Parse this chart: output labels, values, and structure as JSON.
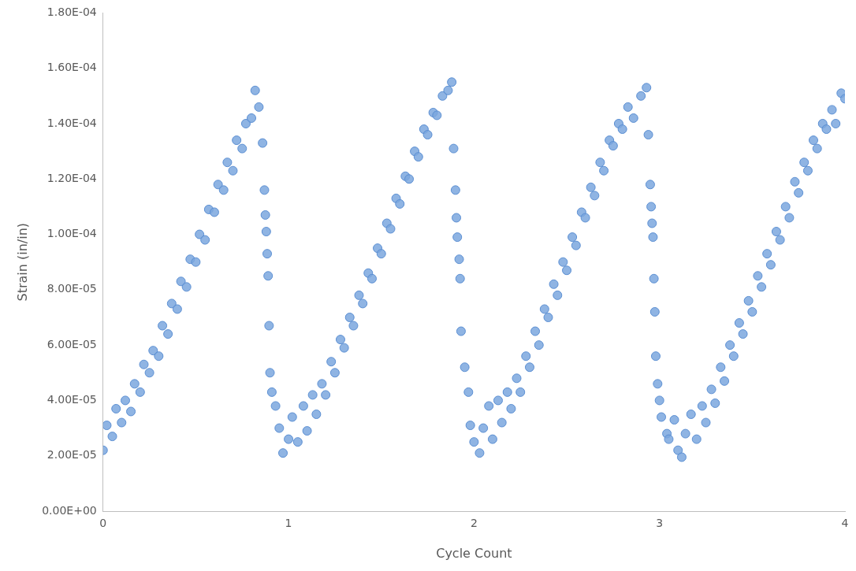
{
  "chart_data": {
    "type": "scatter",
    "xlabel": "Cycle Count",
    "ylabel": "Strain (in/in)",
    "marker": "circle",
    "grid": false,
    "legend": false,
    "xlim": [
      0,
      4
    ],
    "xticks": [
      0,
      1,
      2,
      3,
      4
    ],
    "ylim": [
      0,
      0.00018
    ],
    "yticks": [
      {
        "value": 0,
        "label": "0.00E+00"
      },
      {
        "value": 2e-05,
        "label": "2.00E-05"
      },
      {
        "value": 4e-05,
        "label": "4.00E-05"
      },
      {
        "value": 6e-05,
        "label": "6.00E-05"
      },
      {
        "value": 8e-05,
        "label": "8.00E-05"
      },
      {
        "value": 0.0001,
        "label": "1.00E-04"
      },
      {
        "value": 0.00012,
        "label": "1.20E-04"
      },
      {
        "value": 0.00014,
        "label": "1.40E-04"
      },
      {
        "value": 0.00016,
        "label": "1.60E-04"
      },
      {
        "value": 0.00018,
        "label": "1.80E-04"
      }
    ],
    "series": [
      {
        "color": "#7ba7de",
        "x": [
          0,
          0.02,
          0.05,
          0.07,
          0.1,
          0.12,
          0.15,
          0.17,
          0.2,
          0.22,
          0.25,
          0.27,
          0.3,
          0.32,
          0.35,
          0.37,
          0.4,
          0.42,
          0.45,
          0.47,
          0.5,
          0.52,
          0.55,
          0.57,
          0.6,
          0.62,
          0.65,
          0.67,
          0.7,
          0.72,
          0.75,
          0.77,
          0.8,
          0.82,
          0.84,
          0.86,
          0.87,
          0.875,
          0.88,
          0.885,
          0.89,
          0.895,
          0.9,
          0.91,
          0.93,
          0.95,
          0.97,
          1,
          1.02,
          1.05,
          1.08,
          1.1,
          1.13,
          1.15,
          1.18,
          1.2,
          1.23,
          1.25,
          1.28,
          1.3,
          1.33,
          1.35,
          1.38,
          1.4,
          1.43,
          1.45,
          1.48,
          1.5,
          1.53,
          1.55,
          1.58,
          1.6,
          1.63,
          1.65,
          1.68,
          1.7,
          1.73,
          1.75,
          1.78,
          1.8,
          1.83,
          1.86,
          1.88,
          1.89,
          1.9,
          1.905,
          1.91,
          1.92,
          1.925,
          1.93,
          1.95,
          1.97,
          1.98,
          2,
          2.03,
          2.05,
          2.08,
          2.1,
          2.13,
          2.15,
          2.18,
          2.2,
          2.23,
          2.25,
          2.28,
          2.3,
          2.33,
          2.35,
          2.38,
          2.4,
          2.43,
          2.45,
          2.48,
          2.5,
          2.53,
          2.55,
          2.58,
          2.6,
          2.63,
          2.65,
          2.68,
          2.7,
          2.73,
          2.75,
          2.78,
          2.8,
          2.83,
          2.86,
          2.9,
          2.93,
          2.94,
          2.95,
          2.955,
          2.96,
          2.965,
          2.97,
          2.975,
          2.98,
          2.99,
          3,
          3.01,
          3.04,
          3.05,
          3.08,
          3.1,
          3.12,
          3.14,
          3.17,
          3.2,
          3.23,
          3.25,
          3.28,
          3.3,
          3.33,
          3.35,
          3.38,
          3.4,
          3.43,
          3.45,
          3.48,
          3.5,
          3.53,
          3.55,
          3.58,
          3.6,
          3.63,
          3.65,
          3.68,
          3.7,
          3.73,
          3.75,
          3.78,
          3.8,
          3.83,
          3.85,
          3.88,
          3.9,
          3.93,
          3.95,
          3.98,
          4
        ],
        "values": [
          2.2e-05,
          3.1e-05,
          2.7e-05,
          3.7e-05,
          3.2e-05,
          4e-05,
          3.6e-05,
          4.6e-05,
          4.3e-05,
          5.3e-05,
          5e-05,
          5.8e-05,
          5.6e-05,
          6.7e-05,
          6.4e-05,
          7.5e-05,
          7.3e-05,
          8.3e-05,
          8.1e-05,
          9.1e-05,
          9e-05,
          0.0001,
          9.8e-05,
          0.000109,
          0.000108,
          0.000118,
          0.000116,
          0.000126,
          0.000123,
          0.000134,
          0.000131,
          0.00014,
          0.000142,
          0.000152,
          0.000146,
          0.000133,
          0.000116,
          0.000107,
          0.000101,
          9.3e-05,
          8.5e-05,
          6.7e-05,
          5e-05,
          4.3e-05,
          3.8e-05,
          3e-05,
          2.1e-05,
          2.6e-05,
          3.4e-05,
          2.5e-05,
          3.8e-05,
          2.9e-05,
          4.2e-05,
          3.5e-05,
          4.6e-05,
          4.2e-05,
          5.4e-05,
          5e-05,
          6.2e-05,
          5.9e-05,
          7e-05,
          6.7e-05,
          7.8e-05,
          7.5e-05,
          8.6e-05,
          8.4e-05,
          9.5e-05,
          9.3e-05,
          0.000104,
          0.000102,
          0.000113,
          0.000111,
          0.000121,
          0.00012,
          0.00013,
          0.000128,
          0.000138,
          0.000136,
          0.000144,
          0.000143,
          0.00015,
          0.000152,
          0.000155,
          0.000131,
          0.000116,
          0.000106,
          9.9e-05,
          9.1e-05,
          8.4e-05,
          6.5e-05,
          5.2e-05,
          4.3e-05,
          3.1e-05,
          2.5e-05,
          2.1e-05,
          3e-05,
          3.8e-05,
          2.6e-05,
          4e-05,
          3.2e-05,
          4.3e-05,
          3.7e-05,
          4.8e-05,
          4.3e-05,
          5.6e-05,
          5.2e-05,
          6.5e-05,
          6e-05,
          7.3e-05,
          7e-05,
          8.2e-05,
          7.8e-05,
          9e-05,
          8.7e-05,
          9.9e-05,
          9.6e-05,
          0.000108,
          0.000106,
          0.000117,
          0.000114,
          0.000126,
          0.000123,
          0.000134,
          0.000132,
          0.00014,
          0.000138,
          0.000146,
          0.000142,
          0.00015,
          0.000153,
          0.000136,
          0.000118,
          0.00011,
          0.000104,
          9.9e-05,
          8.4e-05,
          7.2e-05,
          5.6e-05,
          4.6e-05,
          4e-05,
          3.4e-05,
          2.8e-05,
          2.6e-05,
          3.3e-05,
          2.2e-05,
          1.95e-05,
          2.8e-05,
          3.5e-05,
          2.6e-05,
          3.8e-05,
          3.2e-05,
          4.4e-05,
          3.9e-05,
          5.2e-05,
          4.7e-05,
          6e-05,
          5.6e-05,
          6.8e-05,
          6.4e-05,
          7.6e-05,
          7.2e-05,
          8.5e-05,
          8.1e-05,
          9.3e-05,
          8.9e-05,
          0.000101,
          9.8e-05,
          0.00011,
          0.000106,
          0.000119,
          0.000115,
          0.000126,
          0.000123,
          0.000134,
          0.000131,
          0.00014,
          0.000138,
          0.000145,
          0.00014,
          0.000151,
          0.000149
        ]
      }
    ]
  }
}
